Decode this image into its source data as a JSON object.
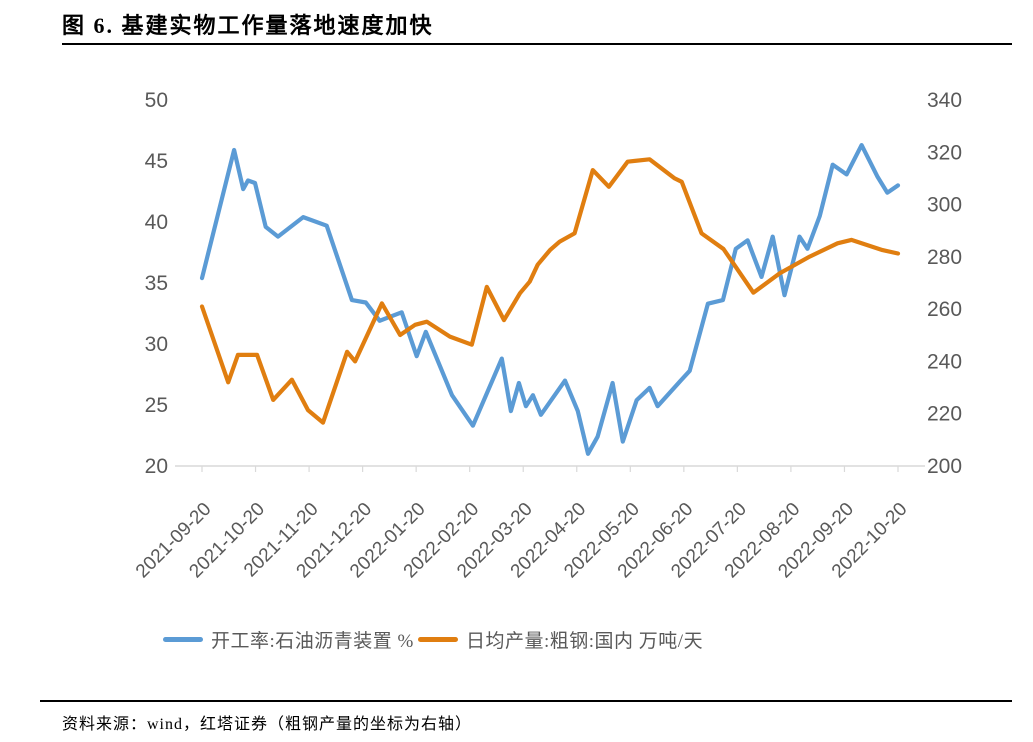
{
  "page": {
    "title": "图 6. 基建实物工作量落地速度加快",
    "source_note": "资料来源：wind，红塔证券（粗钢产量的坐标为右轴）"
  },
  "chart_data": {
    "type": "line",
    "title": "图 6. 基建实物工作量落地速度加快",
    "grid": false,
    "legend_position": "bottom",
    "x_unit": "months since 2021-09-20 (category axis)",
    "x_axis": {
      "labels": [
        "2021-09-20",
        "2021-10-20",
        "2021-11-20",
        "2021-12-20",
        "2022-01-20",
        "2022-02-20",
        "2022-03-20",
        "2022-04-20",
        "2022-05-20",
        "2022-06-20",
        "2022-07-20",
        "2022-08-20",
        "2022-09-20",
        "2022-10-20"
      ],
      "label_rotation_deg": -45
    },
    "y_axis_left": {
      "ticks": [
        50,
        45,
        40,
        35,
        30,
        25,
        20
      ],
      "range": [
        20,
        50
      ]
    },
    "y_axis_right": {
      "ticks": [
        340,
        320,
        300,
        280,
        260,
        240,
        220,
        200
      ],
      "range": [
        200,
        340
      ]
    },
    "axis_text_color": "#595959",
    "axis_line_color": "#D9D9D9",
    "series": [
      {
        "name": "开工率:石油沥青装置 %",
        "axis": "left",
        "color": "#5B9BD5",
        "points": [
          [
            0,
            35.4
          ],
          [
            0.6,
            45.9
          ],
          [
            0.77,
            42.7
          ],
          [
            0.86,
            43.4
          ],
          [
            0.99,
            43.2
          ],
          [
            1.19,
            39.6
          ],
          [
            1.42,
            38.8
          ],
          [
            1.89,
            40.4
          ],
          [
            2.33,
            39.7
          ],
          [
            2.8,
            33.6
          ],
          [
            3.06,
            33.4
          ],
          [
            3.32,
            31.9
          ],
          [
            3.73,
            32.6
          ],
          [
            4.01,
            29.0
          ],
          [
            4.18,
            31.0
          ],
          [
            4.67,
            25.8
          ],
          [
            5.06,
            23.3
          ],
          [
            5.6,
            28.8
          ],
          [
            5.77,
            24.5
          ],
          [
            5.92,
            26.8
          ],
          [
            6.05,
            24.9
          ],
          [
            6.18,
            25.8
          ],
          [
            6.33,
            24.2
          ],
          [
            6.78,
            27.0
          ],
          [
            7.02,
            24.5
          ],
          [
            7.21,
            21.0
          ],
          [
            7.39,
            22.4
          ],
          [
            7.67,
            26.8
          ],
          [
            7.86,
            22.0
          ],
          [
            8.12,
            25.4
          ],
          [
            8.36,
            26.4
          ],
          [
            8.51,
            24.9
          ],
          [
            8.92,
            26.9
          ],
          [
            9.11,
            27.8
          ],
          [
            9.45,
            33.3
          ],
          [
            9.73,
            33.6
          ],
          [
            9.97,
            37.8
          ],
          [
            10.19,
            38.5
          ],
          [
            10.45,
            35.5
          ],
          [
            10.66,
            38.8
          ],
          [
            10.88,
            34.0
          ],
          [
            11.16,
            38.8
          ],
          [
            11.31,
            37.8
          ],
          [
            11.54,
            40.5
          ],
          [
            11.78,
            44.7
          ],
          [
            12.04,
            43.9
          ],
          [
            12.32,
            46.3
          ],
          [
            12.62,
            43.7
          ],
          [
            12.8,
            42.4
          ],
          [
            13,
            43.0
          ]
        ]
      },
      {
        "name": "日均产量:粗钢:国内 万吨/天",
        "axis": "right",
        "color": "#E07E10",
        "points": [
          [
            0,
            261
          ],
          [
            0.49,
            232
          ],
          [
            0.67,
            242.5
          ],
          [
            1.03,
            242.5
          ],
          [
            1.33,
            225.3
          ],
          [
            1.68,
            233
          ],
          [
            1.98,
            221.4
          ],
          [
            2.26,
            216.6
          ],
          [
            2.71,
            243.7
          ],
          [
            2.86,
            240
          ],
          [
            3.36,
            262.2
          ],
          [
            3.7,
            250.1
          ],
          [
            3.98,
            254
          ],
          [
            4.2,
            255.2
          ],
          [
            4.63,
            249.5
          ],
          [
            5.04,
            246.4
          ],
          [
            5.32,
            268.5
          ],
          [
            5.64,
            255.8
          ],
          [
            5.94,
            266.1
          ],
          [
            6.12,
            270.5
          ],
          [
            6.27,
            277
          ],
          [
            6.5,
            282.6
          ],
          [
            6.68,
            285.8
          ],
          [
            6.96,
            289
          ],
          [
            7.3,
            313.2
          ],
          [
            7.6,
            306.8
          ],
          [
            7.95,
            316.4
          ],
          [
            8.36,
            317.3
          ],
          [
            8.83,
            310
          ],
          [
            8.96,
            308.7
          ],
          [
            9.33,
            289
          ],
          [
            9.74,
            283
          ],
          [
            10.3,
            266.3
          ],
          [
            10.79,
            273.7
          ],
          [
            11.35,
            280.1
          ],
          [
            11.87,
            285.2
          ],
          [
            12.13,
            286.5
          ],
          [
            12.71,
            282.6
          ],
          [
            13,
            281.3
          ]
        ]
      }
    ]
  }
}
